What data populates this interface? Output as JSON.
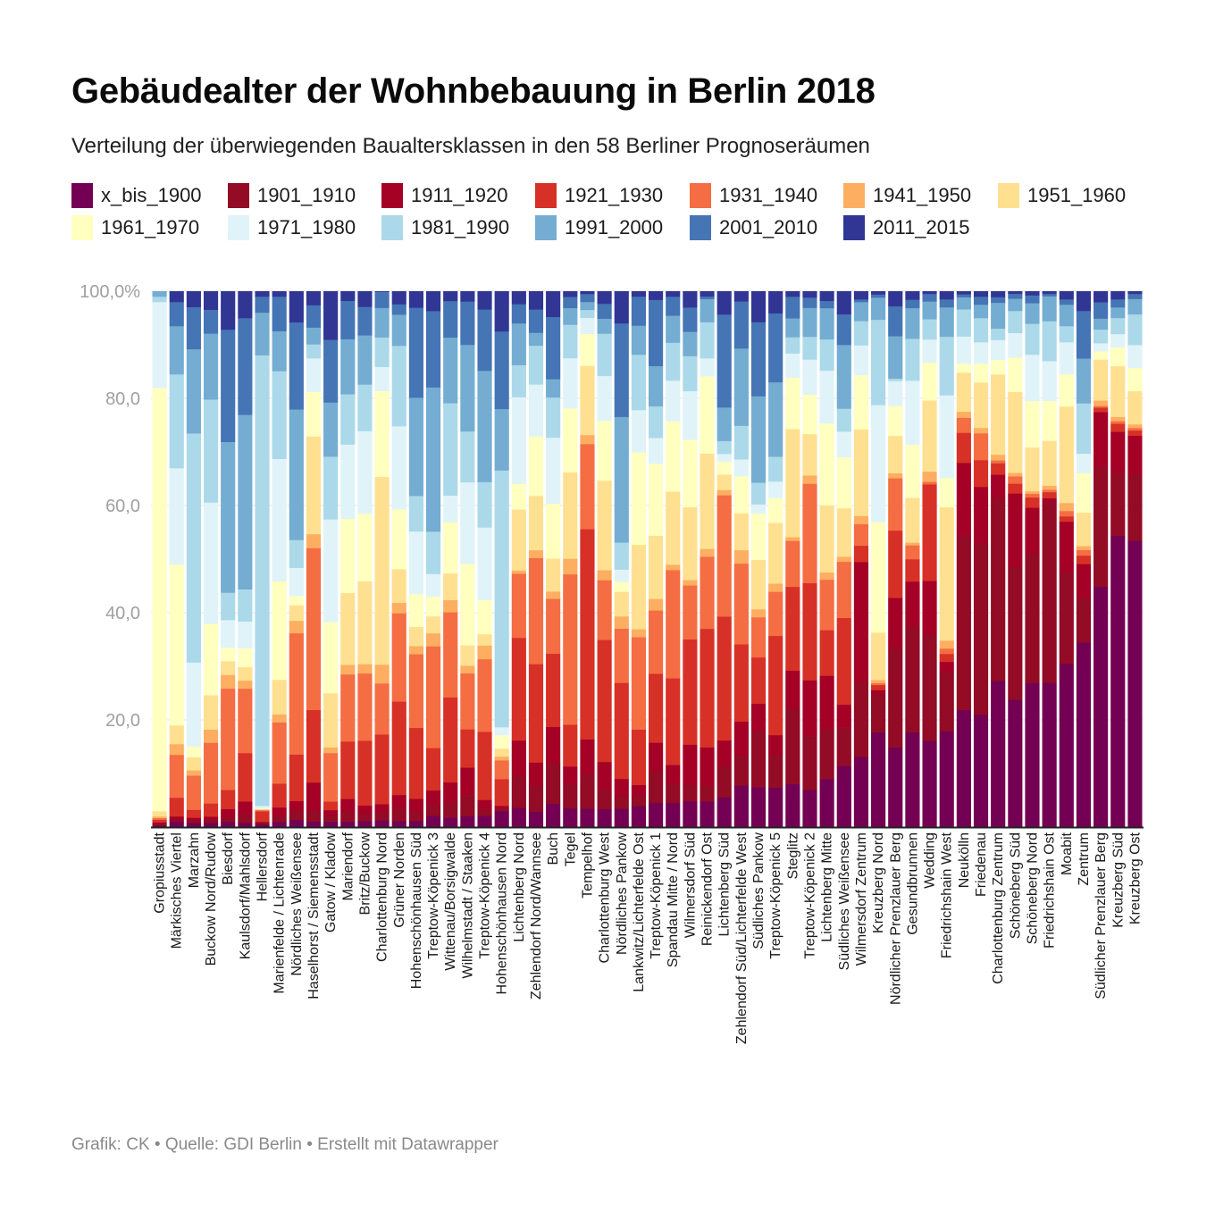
{
  "header": {
    "title": "Gebäudealter der Wohnbebauung in Berlin 2018",
    "subtitle": "Verteilung der überwiegenden Baualtersklassen in den 58 Berliner Prognoseräumen"
  },
  "footer": {
    "text": "Grafik: CK • Quelle: GDI Berlin • Erstellt mit Datawrapper"
  },
  "chart_data": {
    "type": "bar",
    "stacked": true,
    "normalized": true,
    "orientation": "vertical",
    "title": "Gebäudealter der Wohnbebauung in Berlin 2018",
    "subtitle": "Verteilung der überwiegenden Baualtersklassen in den 58 Berliner Prognoseräumen",
    "xlabel": "",
    "ylabel": "",
    "ylim": [
      0,
      100
    ],
    "yticks": [
      20,
      40,
      60,
      80,
      100
    ],
    "ytick_labels": [
      "20,0",
      "40,0",
      "60,0",
      "80,0",
      "100,0%"
    ],
    "grid": true,
    "legend_position": "top",
    "series_names": [
      "x_bis_1900",
      "1901_1910",
      "1911_1920",
      "1921_1930",
      "1931_1940",
      "1941_1950",
      "1951_1960",
      "1961_1970",
      "1971_1980",
      "1981_1990",
      "1991_2000",
      "2001_2010",
      "2011_2015"
    ],
    "series_colors": [
      "#730052",
      "#930b25",
      "#a50026",
      "#d73027",
      "#f46d43",
      "#fdae61",
      "#fee090",
      "#ffffbf",
      "#e0f3f8",
      "#abd9e9",
      "#74add1",
      "#4575b4",
      "#313695"
    ],
    "categories": [
      "Gropiusstadt",
      "Märkisches Viertel",
      "Marzahn",
      "Buckow Nord/Rudow",
      "Biesdorf",
      "Kaulsdorf/Mahlsdorf",
      "Hellersdorf",
      "Marienfelde / Lichtenrade",
      "Nördliches Weißensee",
      "Haselhorst / Siemensstadt",
      "Gatow / Kladow",
      "Mariendorf",
      "Britz/Buckow",
      "Charlottenburg Nord",
      "Grüner Norden",
      "Hohenschönhausen Süd",
      "Treptow-Köpenick 3",
      "Wittenau/Borsigwalde",
      "Wilhelmstadt / Staaken",
      "Treptow-Köpenick 4",
      "Hohenschönhausen Nord",
      "Lichtenberg Nord",
      "Zehlendorf Nord/Wannsee",
      "Buch",
      "Tegel",
      "Tempelhof",
      "Charlottenburg West",
      "Nördliches Pankow",
      "Lankwitz/Lichterfelde Ost",
      "Treptow-Köpenick 1",
      "Spandau Mitte / Nord",
      "Wilmersdorf Süd",
      "Reinickendorf Ost",
      "Lichtenberg Süd",
      "Zehlendorf Süd/Lichterfelde West",
      "Südliches Pankow",
      "Treptow-Köpenick 5",
      "Steglitz",
      "Treptow-Köpenick 2",
      "Lichtenberg Mitte",
      "Südliches Weißensee",
      "Wilmersdorf Zentrum",
      "Kreuzberg Nord",
      "Nördlicher Prenzlauer Berg",
      "Gesundbrunnen",
      "Wedding",
      "Friedrichshain West",
      "Neukölln",
      "Friedenau",
      "Charlottenburg Zentrum",
      "Schöneberg Süd",
      "Schöneberg Nord",
      "Friedrichshain Ost",
      "Moabit",
      "Zentrum",
      "Südlicher Prenzlauer Berg",
      "Kreuzberg Süd",
      "Kreuzberg Ost"
    ],
    "series": [
      {
        "name": "x_bis_1900",
        "values": [
          0.3,
          1.0,
          0.8,
          0.8,
          1.0,
          0.8,
          0.5,
          1.0,
          1.2,
          1.0,
          1.0,
          1.2,
          1.2,
          1.3,
          1.2,
          1.2,
          2.0,
          2.0,
          2.2,
          2.5,
          3.0,
          3.0,
          3.0,
          3.2,
          3.4,
          3.5,
          3.6,
          3.8,
          4.0,
          4.2,
          4.5,
          4.8,
          5.0,
          5.8,
          6.2,
          6.5,
          7.2,
          8.0,
          9.0,
          10.0,
          12.0,
          13.0,
          15.0,
          16.0,
          17.0,
          17.0,
          18.0,
          19.5,
          21.0,
          25.5,
          26.0,
          28.0,
          29.0,
          30.5,
          33.0,
          44.0,
          54.5,
          56.0
        ]
      },
      {
        "name": "1901_1910",
        "values": [
          0.3,
          0.5,
          0.5,
          0.7,
          0.8,
          1.5,
          0.3,
          1.2,
          1.5,
          2.0,
          1.0,
          2.2,
          1.5,
          1.5,
          2.5,
          1.5,
          2.0,
          3.2,
          4.0,
          1.5,
          0.5,
          5.0,
          5.0,
          5.5,
          4.5,
          6.5,
          4.0,
          2.5,
          2.0,
          5.5,
          3.5,
          3.0,
          3.0,
          6.0,
          4.5,
          9.0,
          6.0,
          14.0,
          13.0,
          10.5,
          7.5,
          14.0,
          6.0,
          20.0,
          19.0,
          21.0,
          11.0,
          29.0,
          32.0,
          32.0,
          27.0,
          25.0,
          36.5,
          17.0,
          8.0,
          22.0,
          12.0,
          13.0
        ]
      },
      {
        "name": "1911_1920",
        "values": [
          0.3,
          0.5,
          0.5,
          0.5,
          1.5,
          2.5,
          0.2,
          1.5,
          1.5,
          5.0,
          1.0,
          2.5,
          1.5,
          1.5,
          2.5,
          2.5,
          2.5,
          4.0,
          5.5,
          2.0,
          0.5,
          5.5,
          4.5,
          5.0,
          3.0,
          6.5,
          5.5,
          3.5,
          2.0,
          5.0,
          3.5,
          7.5,
          7.5,
          5.0,
          5.0,
          4.5,
          3.5,
          7.0,
          13.5,
          11.0,
          4.5,
          22.0,
          0.7,
          10.0,
          8.0,
          10.5,
          2.0,
          12.0,
          10.5,
          4.0,
          15.0,
          9.0,
          0.5,
          9.5,
          6.0,
          10.0,
          7.5,
          7.5
        ]
      },
      {
        "name": "1921_1930",
        "values": [
          0.5,
          3.5,
          1.5,
          2.5,
          3.5,
          9.0,
          2.0,
          4.5,
          7.5,
          13.0,
          1.5,
          12.0,
          12.5,
          13.0,
          18.0,
          13.0,
          7.5,
          17.5,
          7.5,
          15.0,
          5.0,
          16.0,
          19.0,
          10.0,
          7.5,
          39.5,
          24.5,
          19.5,
          10.5,
          12.0,
          16.0,
          19.5,
          23.0,
          24.0,
          11.5,
          7.5,
          18.0,
          15.5,
          23.5,
          9.5,
          17.0,
          3.0,
          0.8,
          13.5,
          4.0,
          19.0,
          1.5,
          5.0,
          5.0,
          2.0,
          2.0,
          2.0,
          1.2,
          1.0,
          1.5,
          0.8,
          1.5,
          1.0
        ]
      },
      {
        "name": "1931_1940",
        "values": [
          0.3,
          8.0,
          6.5,
          11.5,
          18.5,
          12.0,
          0.2,
          11.5,
          19.5,
          29.0,
          8.5,
          14.0,
          13.0,
          9.5,
          17.0,
          13.5,
          18.0,
          17.5,
          11.0,
          16.0,
          3.5,
          10.0,
          20.5,
          7.5,
          27.0,
          16.0,
          12.0,
          11.0,
          17.5,
          11.0,
          20.0,
          10.0,
          14.0,
          23.5,
          12.0,
          6.5,
          8.0,
          8.5,
          24.0,
          10.5,
          11.0,
          4.0,
          0.3,
          10.5,
          2.5,
          0.5,
          1.0,
          2.5,
          5.0,
          0.5,
          1.5,
          0.7,
          0.5,
          1.0,
          1.0,
          0.3,
          0.5,
          0.5
        ]
      },
      {
        "name": "1941_1950",
        "values": [
          0.3,
          2.0,
          1.0,
          2.5,
          2.5,
          1.5,
          0.1,
          1.5,
          2.0,
          2.5,
          1.0,
          2.0,
          1.8,
          3.5,
          2.0,
          1.5,
          2.3,
          2.5,
          1.5,
          3.0,
          0.7,
          0.5,
          1.5,
          1.0,
          2.8,
          1.7,
          2.0,
          2.5,
          1.5,
          2.0,
          1.0,
          1.0,
          1.5,
          1.0,
          2.0,
          1.3,
          1.5,
          0.7,
          2.0,
          1.5,
          1.0,
          1.5,
          0.5,
          1.0,
          0.5,
          2.0,
          1.5,
          1.0,
          1.0,
          1.0,
          0.7,
          0.5,
          0.8,
          1.5,
          0.7,
          1.0,
          0.8,
          0.7
        ]
      },
      {
        "name": "1951_1960",
        "values": [
          1.0,
          3.5,
          2.5,
          6.5,
          2.5,
          2.5,
          0.1,
          6.5,
          2.5,
          17.5,
          9.5,
          15.0,
          16.0,
          35.0,
          6.5,
          3.5,
          3.0,
          5.5,
          4.0,
          2.5,
          1.5,
          9.5,
          10.5,
          4.5,
          15.5,
          13.0,
          18.0,
          5.0,
          16.0,
          11.0,
          13.5,
          13.5,
          18.5,
          3.0,
          5.5,
          8.0,
          11.0,
          20.0,
          10.0,
          14.0,
          9.5,
          16.0,
          7.5,
          7.5,
          8.0,
          14.0,
          25.0,
          6.5,
          8.5,
          14.0,
          16.5,
          8.5,
          9.0,
          18.0,
          6.0,
          7.5,
          9.5,
          6.5
        ]
      },
      {
        "name": "1961_1970",
        "values": [
          79.0,
          30.0,
          2.0,
          13.5,
          2.5,
          3.5,
          0.1,
          18.5,
          1.5,
          8.0,
          12.5,
          15.5,
          13.0,
          16.0,
          11.5,
          6.0,
          3.5,
          10.5,
          16.0,
          7.5,
          2.5,
          4.0,
          11.5,
          7.5,
          11.5,
          6.0,
          12.0,
          2.0,
          17.5,
          12.5,
          13.0,
          12.5,
          15.0,
          2.5,
          5.5,
          7.5,
          4.5,
          9.5,
          9.5,
          17.0,
          10.0,
          10.0,
          17.5,
          6.0,
          9.5,
          7.5,
          5.5,
          1.5,
          3.5,
          2.5,
          7.0,
          9.0,
          8.0,
          6.0,
          7.0,
          1.5,
          3.5,
          4.5
        ]
      },
      {
        "name": "1971_1980",
        "values": [
          16.0,
          18.0,
          16.0,
          23.0,
          5.0,
          5.0,
          0.5,
          23.0,
          4.5,
          6.0,
          18.0,
          15.5,
          16.0,
          4.5,
          16.0,
          11.5,
          4.0,
          5.5,
          16.0,
          16.0,
          1.5,
          13.5,
          10.0,
          9.0,
          9.0,
          3.0,
          9.0,
          2.5,
          8.0,
          4.5,
          7.5,
          9.0,
          3.5,
          1.5,
          2.5,
          1.5,
          3.0,
          4.5,
          8.5,
          11.0,
          5.0,
          5.5,
          18.5,
          5.0,
          11.5,
          4.5,
          15.5,
          4.5,
          4.0,
          3.5,
          5.0,
          9.0,
          8.0,
          6.0,
          3.5,
          1.5,
          2.5,
          4.5
        ]
      },
      {
        "name": "1981_1990",
        "values": [
          1.0,
          17.5,
          43.5,
          19.5,
          5.0,
          6.0,
          84.5,
          16.5,
          4.5,
          2.5,
          11.0,
          10.5,
          9.0,
          5.5,
          15.5,
          6.5,
          7.5,
          19.0,
          10.0,
          10.0,
          48.0,
          5.0,
          7.5,
          5.5,
          6.0,
          1.5,
          8.5,
          5.5,
          10.5,
          5.5,
          7.0,
          6.5,
          7.0,
          2.5,
          5.0,
          3.5,
          4.5,
          3.0,
          5.5,
          6.5,
          4.5,
          4.5,
          13.5,
          0.5,
          7.5,
          4.0,
          11.0,
          4.5,
          4.5,
          2.0,
          4.5,
          6.0,
          8.0,
          3.0,
          9.0,
          2.5,
          3.0,
          6.0
        ]
      },
      {
        "name": "1991_2000",
        "values": [
          1.0,
          9.0,
          16.0,
          12.5,
          27.5,
          32.5,
          8.0,
          7.5,
          21.0,
          3.0,
          9.5,
          11.5,
          9.5,
          5.5,
          6.0,
          18.0,
          25.5,
          13.5,
          17.0,
          24.5,
          11.5,
          6.5,
          2.5,
          2.5,
          3.0,
          1.5,
          3.0,
          25.5,
          5.5,
          7.0,
          5.0,
          4.5,
          4.5,
          6.5,
          11.5,
          14.0,
          13.5,
          3.5,
          7.0,
          6.5,
          12.5,
          3.5,
          3.5,
          8.5,
          5.5,
          3.5,
          5.5,
          2.0,
          2.5,
          4.5,
          2.5,
          4.0,
          5.0,
          4.0,
          8.0,
          2.0,
          2.0,
          3.0
        ]
      },
      {
        "name": "2001_2010",
        "values": [
          0.0,
          4.5,
          8.0,
          4.5,
          20.5,
          18.0,
          3.0,
          6.5,
          14.0,
          4.0,
          11.0,
          8.0,
          5.5,
          3.0,
          2.0,
          16.5,
          13.5,
          7.5,
          8.5,
          13.5,
          14.5,
          3.0,
          4.5,
          8.5,
          2.0,
          1.5,
          3.0,
          19.0,
          5.5,
          11.5,
          3.5,
          4.5,
          0.5,
          18.0,
          7.0,
          12.0,
          12.5,
          4.0,
          2.5,
          1.5,
          6.0,
          0.5,
          0.5,
          6.0,
          1.5,
          1.5,
          1.5,
          0.5,
          1.5,
          1.0,
          1.0,
          1.5,
          0.5,
          1.0,
          8.5,
          3.0,
          1.5,
          1.0
        ]
      },
      {
        "name": "2011_2015",
        "values": [
          0.0,
          2.0,
          3.0,
          3.5,
          7.0,
          5.0,
          1.0,
          1.0,
          5.0,
          2.5,
          8.5,
          2.0,
          3.0,
          0.1,
          2.5,
          3.0,
          3.5,
          2.0,
          2.0,
          4.0,
          7.5,
          2.0,
          3.5,
          3.5,
          1.0,
          0.5,
          2.5,
          6.5,
          1.0,
          1.5,
          1.0,
          3.0,
          1.0,
          4.5,
          1.5,
          5.0,
          4.0,
          1.0,
          1.5,
          2.0,
          4.5,
          1.5,
          0.5,
          3.0,
          1.5,
          0.5,
          1.5,
          0.5,
          1.0,
          1.0,
          0.5,
          0.8,
          0.5,
          1.5,
          3.5,
          2.0,
          1.5,
          0.5
        ]
      }
    ]
  }
}
